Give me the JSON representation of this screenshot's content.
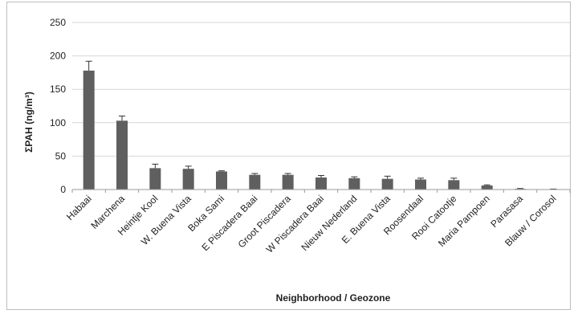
{
  "chart_data": {
    "type": "bar",
    "title": "",
    "xlabel": "Neighborhood / Geozone",
    "ylabel": "ΣPAH (ng/m³)",
    "ylim": [
      0,
      250
    ],
    "yticks": [
      0,
      50,
      100,
      150,
      200,
      250
    ],
    "grid": true,
    "legend": "none",
    "bar_color": "#5f5f5f",
    "categories": [
      "Habaai",
      "Marchena",
      "Heintje Kool",
      "W. Buena Vista",
      "Boka Sami",
      "E Piscadera Baai",
      "Groot Piscadera",
      "W Piscadera Baai",
      "Nieuw Nederland",
      "E. Buena Vista",
      "Roosendaal",
      "Rooi Catootje",
      "Maria Pampoen",
      "Parasasa",
      "Blauw / Corosol"
    ],
    "values": [
      178,
      103,
      32,
      31,
      27,
      22,
      22,
      18,
      17,
      16,
      15,
      14,
      6,
      1,
      0.5
    ],
    "errors": [
      14,
      7,
      6,
      4,
      1,
      2,
      2,
      3,
      2,
      4,
      2,
      3,
      1,
      0.5,
      0.2
    ]
  }
}
